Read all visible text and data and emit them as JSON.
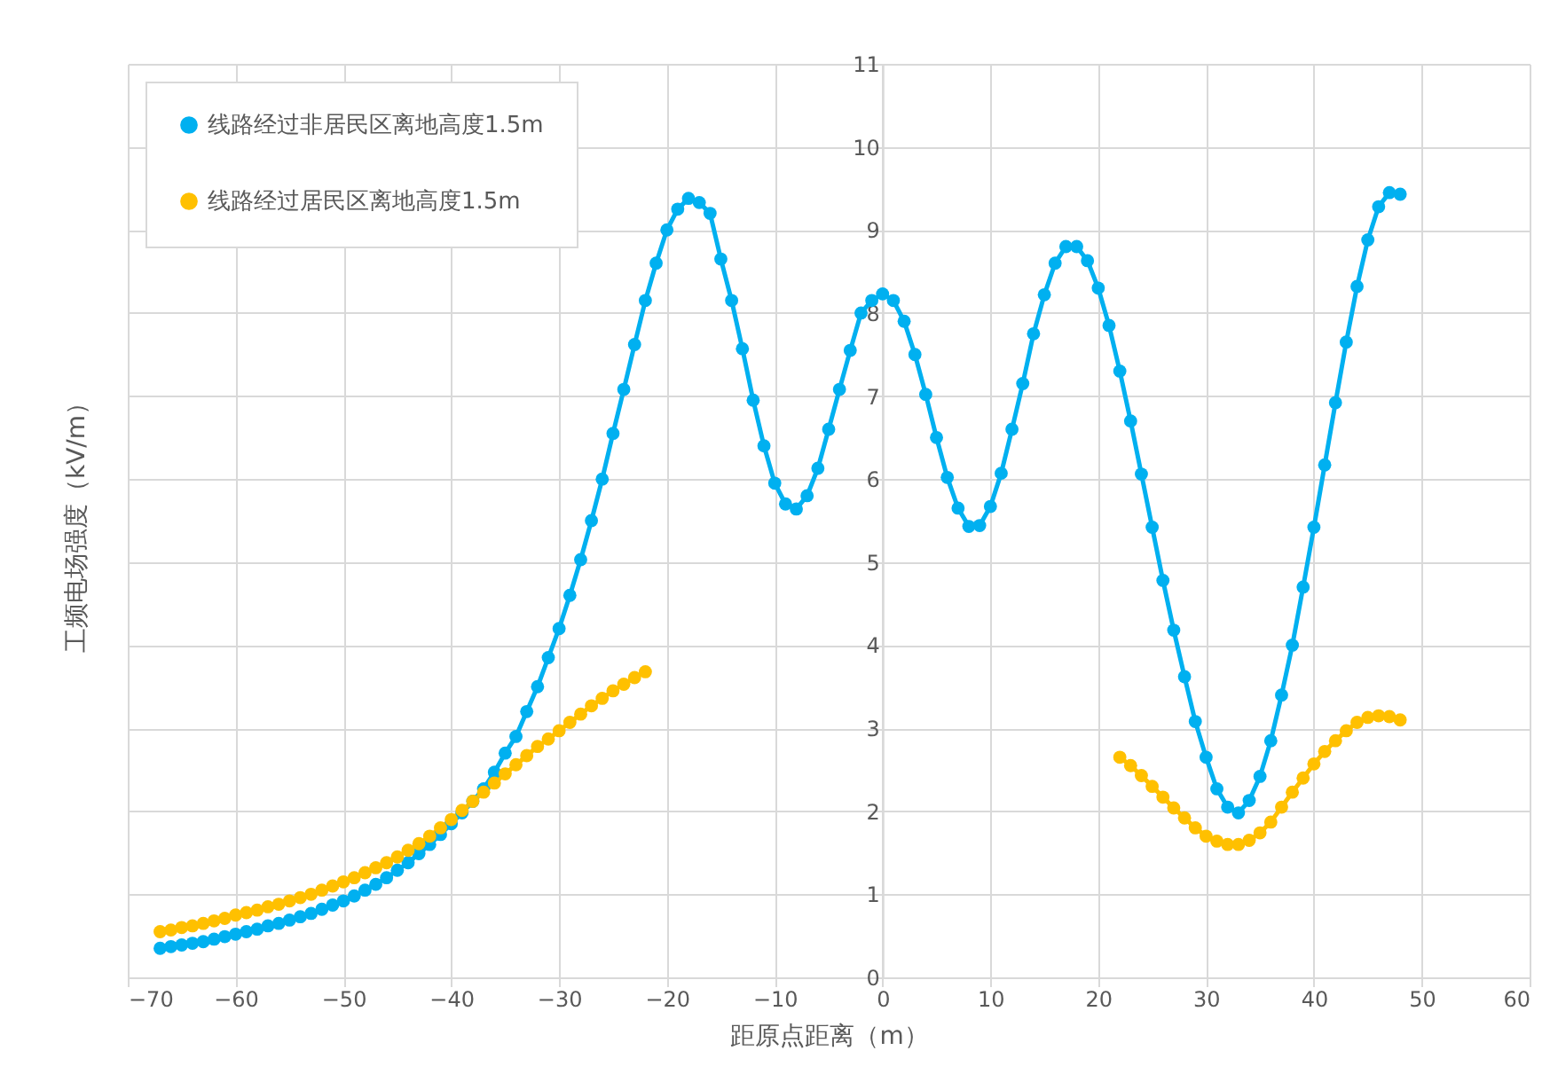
{
  "chart_data": {
    "type": "line",
    "xlabel": "距原点距离（m）",
    "ylabel": "工频电场强度（kV/m）",
    "x": [
      -67,
      -66,
      -65,
      -64,
      -63,
      -62,
      -61,
      -60,
      -59,
      -58,
      -57,
      -56,
      -55,
      -54,
      -53,
      -52,
      -51,
      -50,
      -49,
      -48,
      -47,
      -46,
      -45,
      -44,
      -43,
      -42,
      -41,
      -40,
      -39,
      -38,
      -37,
      -36,
      -35,
      -34,
      -33,
      -32,
      -31,
      -30,
      -29,
      -28,
      -27,
      -26,
      -25,
      -24,
      -23,
      -22,
      -21,
      -20,
      -19,
      -18,
      -17,
      -16,
      -15,
      -14,
      -13,
      -12,
      -11,
      -10,
      -9,
      -8,
      -7,
      -6,
      -5,
      -4,
      -3,
      -2,
      -1,
      0,
      1,
      2,
      3,
      4,
      5,
      6,
      7,
      8,
      9,
      10,
      11,
      12,
      13,
      14,
      15,
      16,
      17,
      18,
      19,
      20,
      21,
      22,
      23,
      24,
      25,
      26,
      27,
      28,
      29,
      30,
      31,
      32,
      33,
      34,
      35,
      36,
      37,
      38,
      39,
      40,
      41,
      42,
      43,
      44,
      45,
      46,
      47,
      48
    ],
    "series": [
      {
        "name": "线路经过非居民区离地高度1.5m",
        "color": "#00b0f0",
        "values": [
          0.35,
          0.37,
          0.39,
          0.41,
          0.43,
          0.46,
          0.49,
          0.52,
          0.55,
          0.58,
          0.62,
          0.65,
          0.69,
          0.73,
          0.77,
          0.82,
          0.87,
          0.92,
          0.98,
          1.05,
          1.12,
          1.2,
          1.29,
          1.38,
          1.49,
          1.6,
          1.72,
          1.85,
          1.98,
          2.12,
          2.27,
          2.47,
          2.7,
          2.9,
          3.2,
          3.5,
          3.85,
          4.2,
          4.6,
          5.03,
          5.5,
          6.0,
          6.55,
          7.08,
          7.62,
          8.15,
          8.6,
          9.0,
          9.25,
          9.38,
          9.33,
          9.2,
          8.65,
          8.15,
          7.57,
          6.95,
          6.4,
          5.95,
          5.7,
          5.64,
          5.8,
          6.13,
          6.6,
          7.08,
          7.55,
          8.0,
          8.15,
          8.23,
          8.15,
          7.9,
          7.5,
          7.02,
          6.5,
          6.02,
          5.65,
          5.43,
          5.44,
          5.67,
          6.07,
          6.6,
          7.15,
          7.75,
          8.22,
          8.6,
          8.8,
          8.8,
          8.63,
          8.3,
          7.85,
          7.3,
          6.7,
          6.06,
          5.42,
          4.78,
          4.18,
          3.62,
          3.08,
          2.65,
          2.27,
          2.05,
          1.98,
          2.13,
          2.42,
          2.85,
          3.4,
          4.0,
          4.7,
          5.42,
          6.17,
          6.92,
          7.65,
          8.32,
          8.88,
          9.28,
          9.45,
          9.43
        ]
      },
      {
        "name": "线路经过居民区离地高度1.5m",
        "color": "#ffc000",
        "values": [
          0.55,
          0.57,
          0.6,
          0.62,
          0.65,
          0.68,
          0.71,
          0.75,
          0.78,
          0.81,
          0.85,
          0.88,
          0.92,
          0.96,
          1.0,
          1.05,
          1.1,
          1.15,
          1.2,
          1.26,
          1.32,
          1.38,
          1.45,
          1.53,
          1.61,
          1.7,
          1.8,
          1.9,
          2.01,
          2.12,
          2.23,
          2.34,
          2.45,
          2.56,
          2.67,
          2.78,
          2.87,
          2.97,
          3.07,
          3.17,
          3.27,
          3.36,
          3.45,
          3.53,
          3.61,
          3.68,
          null,
          null,
          null,
          null,
          null,
          null,
          null,
          null,
          null,
          null,
          null,
          null,
          null,
          null,
          null,
          null,
          null,
          null,
          null,
          null,
          null,
          null,
          null,
          null,
          null,
          null,
          null,
          null,
          null,
          null,
          null,
          null,
          null,
          null,
          null,
          null,
          null,
          null,
          null,
          null,
          null,
          null,
          null,
          2.65,
          2.55,
          2.43,
          2.3,
          2.17,
          2.04,
          1.92,
          1.8,
          1.7,
          1.64,
          1.6,
          1.6,
          1.65,
          1.74,
          1.87,
          2.05,
          2.23,
          2.4,
          2.57,
          2.72,
          2.85,
          2.97,
          3.07,
          3.13,
          3.15,
          3.14,
          3.1
        ]
      }
    ],
    "xlim": [
      -70,
      60
    ],
    "xticks": [
      -70,
      -60,
      -50,
      -40,
      -30,
      -20,
      -10,
      0,
      10,
      20,
      30,
      40,
      50,
      60
    ],
    "ylim": [
      0,
      11
    ],
    "yticks": [
      0,
      1,
      2,
      3,
      4,
      5,
      6,
      7,
      8,
      9,
      10,
      11
    ],
    "grid": true,
    "legend": "top left",
    "marker": "circle",
    "line_style": "solid"
  }
}
